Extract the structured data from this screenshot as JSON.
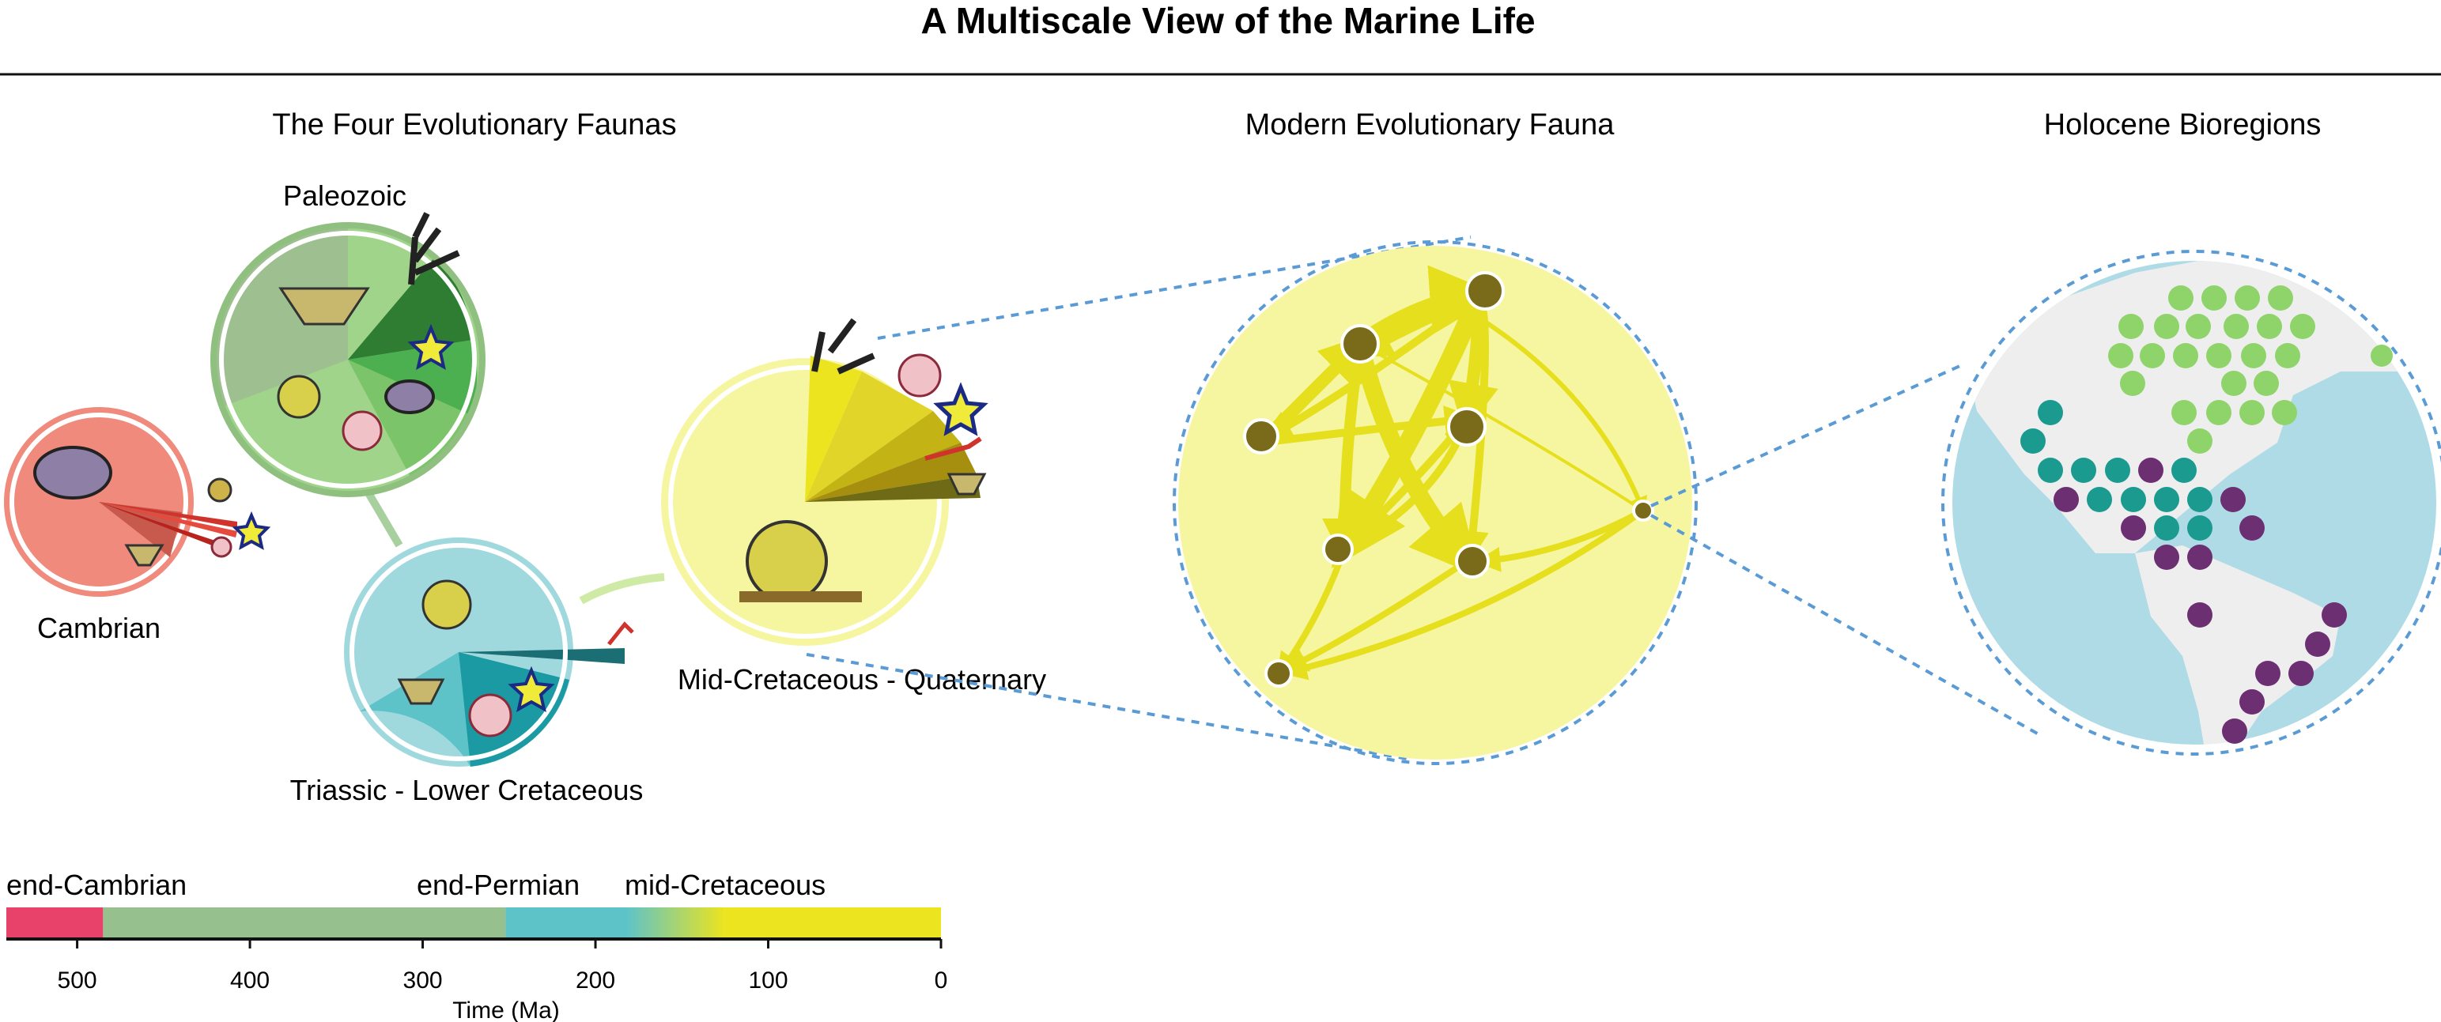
{
  "title": "A Multiscale View of the Marine Life",
  "panels": {
    "faunas": "The Four Evolutionary Faunas",
    "modern": "Modern Evolutionary Fauna",
    "holocene": "Holocene Bioregions"
  },
  "faunas": {
    "cambrian": "Cambrian",
    "paleozoic": "Paleozoic",
    "triassic": "Triassic - Lower Cretaceous",
    "mid_cretaceous": "Mid-Cretaceous - Quaternary"
  },
  "colors": {
    "cambrian": "#f08a7c",
    "paleozoic": "#8fc07f",
    "triassic": "#9fd9de",
    "modern": "#f7f6a0",
    "node": "#7a6b1a",
    "edge": "#e6df1e",
    "ocean": "#aedbe6",
    "green_region": "#8fd46a",
    "teal_region": "#1b9a8f",
    "purple_region": "#6b2f72"
  },
  "timeline": {
    "events": [
      "end-Cambrian",
      "end-Permian",
      "mid-Cretaceous"
    ],
    "ticks": [
      "500",
      "400",
      "300",
      "200",
      "100",
      "0"
    ],
    "axis_label": "Time (Ma)",
    "segments": [
      {
        "name": "Cambrian",
        "from": 541,
        "to": 485,
        "color": "#e8416a"
      },
      {
        "name": "Paleozoic",
        "from": 485,
        "to": 252,
        "color": "#96c08d"
      },
      {
        "name": "Triassic - Lower Cretaceous",
        "from": 252,
        "to": 125,
        "color": "#5ec3c9"
      },
      {
        "name": "Mid-Cretaceous - Quaternary",
        "from": 125,
        "to": 0,
        "color": "#ece41e"
      }
    ]
  }
}
